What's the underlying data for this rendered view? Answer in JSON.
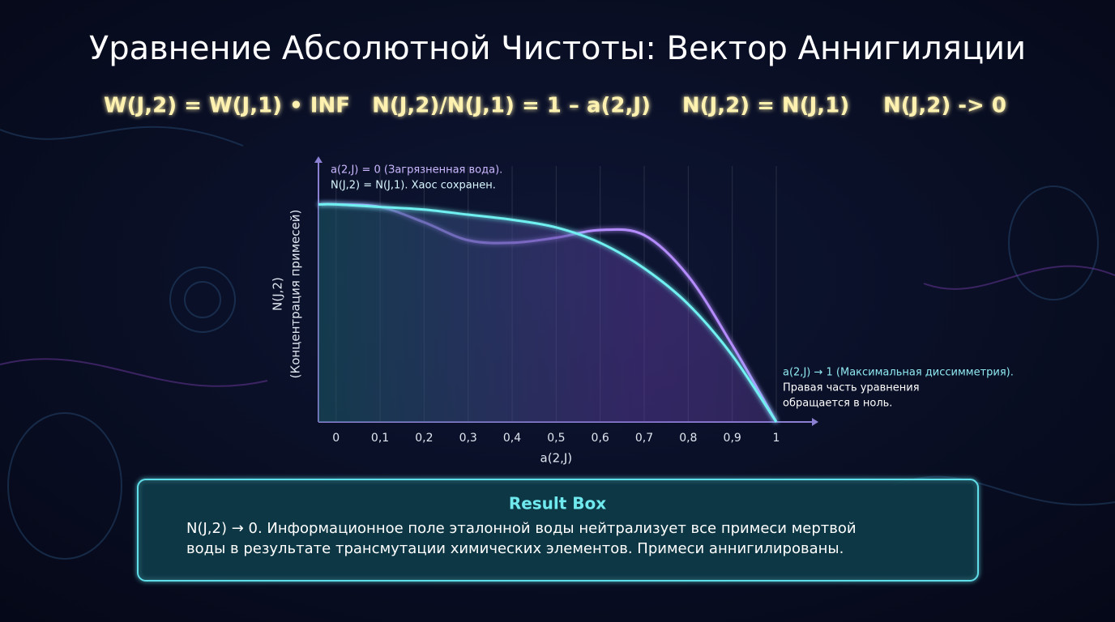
{
  "title": "Уравнение Абсолютной Чистоты: Вектор Аннигиляции",
  "equations": [
    "W(J,2) = W(J,1) • INF",
    "N(J,2)/N(J,1) = 1 – a(2,J)",
    "N(J,2) = N(J,1)",
    "N(J,2) -> 0"
  ],
  "chart_data": {
    "type": "line",
    "x_label": "a(2,J)",
    "y_label": [
      "N(J,2)",
      "(Концентрация примесей)"
    ],
    "x": [
      -0.04,
      0,
      0.1,
      0.2,
      0.3,
      0.4,
      0.5,
      0.6,
      0.7,
      0.8,
      0.9,
      1
    ],
    "series": [
      {
        "color": "#b48cff",
        "values": [
          0.85,
          0.85,
          0.84,
          0.78,
          0.71,
          0.7,
          0.72,
          0.75,
          0.73,
          0.57,
          0.3,
          0
        ]
      },
      {
        "color": "#6ff0f0",
        "values": [
          0.85,
          0.85,
          0.84,
          0.83,
          0.81,
          0.79,
          0.76,
          0.7,
          0.6,
          0.46,
          0.26,
          0
        ]
      }
    ],
    "xlim": [
      -0.04,
      1
    ],
    "ylim": [
      0,
      1
    ],
    "xticks": [
      0,
      {
        "value": 0.1,
        "label": "0,1"
      },
      {
        "value": 0.2,
        "label": "0,2"
      },
      {
        "value": 0.3,
        "label": "0,3"
      },
      {
        "value": 0.4,
        "label": "0,4"
      },
      {
        "value": 0.5,
        "label": "0,5"
      },
      {
        "value": 0.6,
        "label": "0,6"
      },
      {
        "value": 0.7,
        "label": "0,7"
      },
      {
        "value": 0.8,
        "label": "0,8"
      },
      {
        "value": 0.9,
        "label": "0,9"
      },
      1
    ],
    "grid": true,
    "annotations": [
      {
        "lines": [
          "a(2,J) = 0 (Загрязненная вода).",
          "N(J,2) = N(J,1). Хаос сохранен."
        ],
        "colors": [
          "#cbb8ff",
          "#d8f6ff"
        ]
      },
      {
        "lines": [
          "a(2,J) → 1 (Максимальная диссимметрия).",
          "Правая часть уравнения",
          "обращается в ноль."
        ],
        "colors": [
          "#8fe8f0",
          "#ffffff",
          "#ffffff"
        ]
      }
    ]
  },
  "result_box": {
    "title": "Result Box",
    "body": [
      "N(J,2) → 0. Информационное поле эталонной воды нейтрализует все примеси мертвой",
      "воды в результате трансмутации химических элементов. Примеси аннигилированы."
    ]
  }
}
